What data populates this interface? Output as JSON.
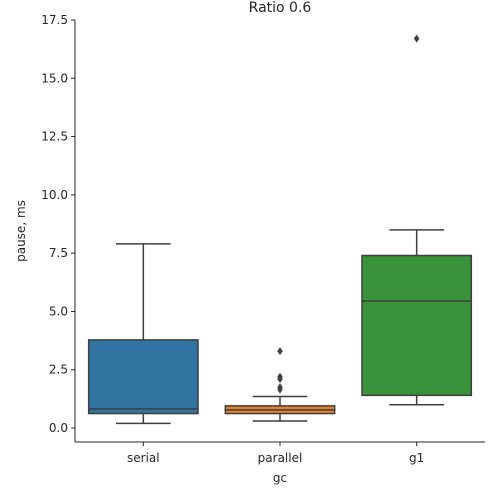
{
  "chart_data": {
    "type": "box",
    "title": "Ratio 0.6",
    "xlabel": "gc",
    "ylabel": "pause, ms",
    "categories": [
      "serial",
      "parallel",
      "g1"
    ],
    "ylim": [
      -0.6,
      17.5
    ],
    "yticks": [
      0.0,
      2.5,
      5.0,
      7.5,
      10.0,
      12.5,
      15.0,
      17.5
    ],
    "ytick_labels": [
      "0.0",
      "2.5",
      "5.0",
      "7.5",
      "10.0",
      "12.5",
      "15.0",
      "17.5"
    ],
    "grid": false,
    "series": [
      {
        "category": "serial",
        "color": "#3274a1",
        "whisker_low": 0.2,
        "q1": 0.62,
        "median": 0.82,
        "q3": 3.78,
        "whisker_high": 7.9,
        "outliers": []
      },
      {
        "category": "parallel",
        "color": "#e1812c",
        "whisker_low": 0.3,
        "q1": 0.62,
        "median": 0.78,
        "q3": 0.95,
        "whisker_high": 1.35,
        "outliers": [
          1.65,
          1.75,
          2.1,
          2.2,
          3.3
        ]
      },
      {
        "category": "g1",
        "color": "#3a923a",
        "whisker_low": 1.0,
        "q1": 1.4,
        "median": 5.45,
        "q3": 7.4,
        "whisker_high": 8.5,
        "outliers": [
          16.7
        ]
      }
    ]
  }
}
